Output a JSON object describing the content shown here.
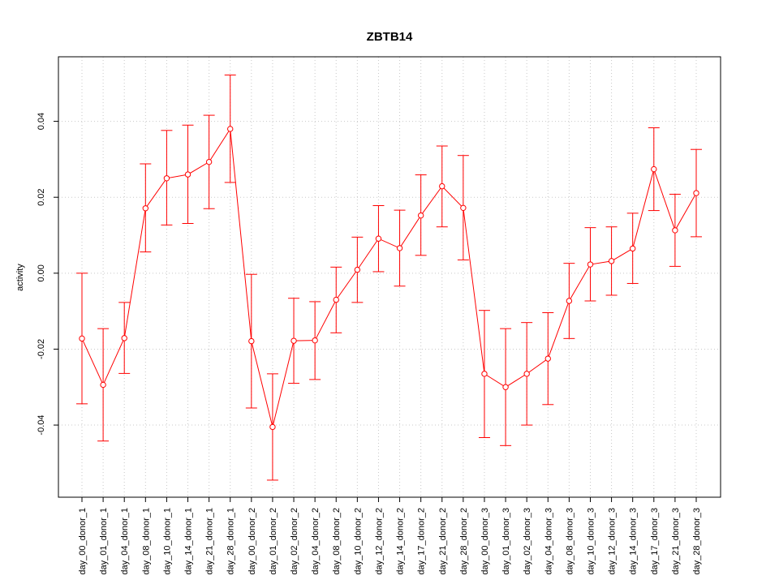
{
  "chart_data": {
    "type": "line",
    "title": "ZBTB14",
    "xlabel": "",
    "ylabel": "activity",
    "ylim": [
      -0.059,
      0.057
    ],
    "y_ticks": [
      -0.04,
      -0.02,
      0.0,
      0.02,
      0.04
    ],
    "y_tick_labels": [
      "-0.04",
      "-0.02",
      "0.00",
      "0.02",
      "0.04"
    ],
    "grid": true,
    "colors": {
      "series": "#ff0000",
      "grid": "#c8c8c8",
      "axis": "#000000"
    },
    "categories": [
      "day_00_donor_1",
      "day_01_donor_1",
      "day_04_donor_1",
      "day_08_donor_1",
      "day_10_donor_1",
      "day_14_donor_1",
      "day_21_donor_1",
      "day_28_donor_1",
      "day_00_donor_2",
      "day_01_donor_2",
      "day_02_donor_2",
      "day_04_donor_2",
      "day_08_donor_2",
      "day_10_donor_2",
      "day_12_donor_2",
      "day_14_donor_2",
      "day_17_donor_2",
      "day_21_donor_2",
      "day_28_donor_2",
      "day_00_donor_3",
      "day_01_donor_3",
      "day_02_donor_3",
      "day_04_donor_3",
      "day_08_donor_3",
      "day_10_donor_3",
      "day_12_donor_3",
      "day_14_donor_3",
      "day_17_donor_3",
      "day_21_donor_3",
      "day_28_donor_3"
    ],
    "series": [
      {
        "values": [
          -0.0172,
          -0.0294,
          -0.0171,
          0.0171,
          0.025,
          0.026,
          0.0293,
          0.038,
          -0.0179,
          -0.0405,
          -0.0178,
          -0.0177,
          -0.007,
          0.0009,
          0.0091,
          0.0066,
          0.0152,
          0.0229,
          0.0172,
          -0.0265,
          -0.03,
          -0.0265,
          -0.0225,
          -0.0073,
          0.0023,
          0.0032,
          0.0065,
          0.0274,
          0.0113,
          0.0211
        ],
        "upper": [
          0.0,
          -0.0146,
          -0.0077,
          0.0288,
          0.0376,
          0.039,
          0.0416,
          0.0522,
          -0.0003,
          -0.0265,
          -0.0066,
          -0.0075,
          0.0016,
          0.0095,
          0.0178,
          0.0166,
          0.0259,
          0.0335,
          0.031,
          -0.0098,
          -0.0146,
          -0.013,
          -0.0104,
          0.0026,
          0.012,
          0.0122,
          0.0158,
          0.0383,
          0.0208,
          0.0326
        ],
        "lower": [
          -0.0344,
          -0.0442,
          -0.0264,
          0.0056,
          0.0127,
          0.0131,
          0.017,
          0.0239,
          -0.0355,
          -0.0545,
          -0.029,
          -0.028,
          -0.0157,
          -0.0077,
          0.0004,
          -0.0034,
          0.0047,
          0.0122,
          0.0035,
          -0.0433,
          -0.0454,
          -0.04,
          -0.0346,
          -0.0172,
          -0.0073,
          -0.0058,
          -0.0027,
          0.0165,
          0.0018,
          0.0096
        ]
      }
    ]
  }
}
